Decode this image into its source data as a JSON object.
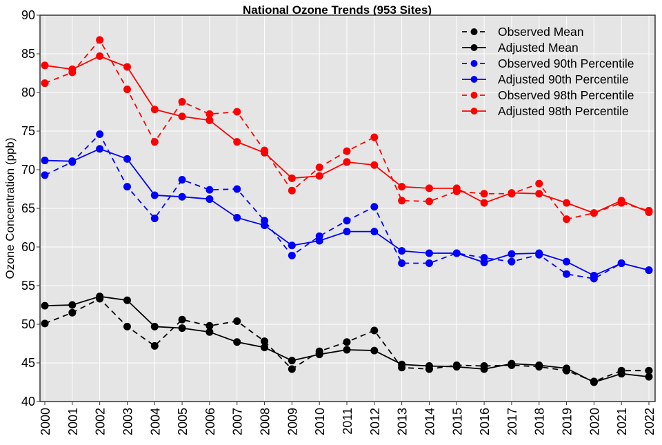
{
  "chart_data": {
    "type": "line",
    "title": "National Ozone Trends (953 Sites)",
    "xlabel": "",
    "ylabel": "Ozone Concentration (ppb)",
    "ylim": [
      40,
      90
    ],
    "yticks": [
      40,
      45,
      50,
      55,
      60,
      65,
      70,
      75,
      80,
      85,
      90
    ],
    "grid": true,
    "legend_position": "top-right",
    "x": [
      "2000",
      "2001",
      "2002",
      "2003",
      "2004",
      "2005",
      "2006",
      "2007",
      "2008",
      "2009",
      "2010",
      "2011",
      "2012",
      "2013",
      "2014",
      "2015",
      "2016",
      "2017",
      "2018",
      "2019",
      "2020",
      "2021",
      "2022"
    ],
    "series": [
      {
        "name": "Observed Mean",
        "color": "#000000",
        "dashed": true,
        "values": [
          50.1,
          51.5,
          53.3,
          49.7,
          47.2,
          50.6,
          49.8,
          50.4,
          47.8,
          44.2,
          46.5,
          47.7,
          49.2,
          44.4,
          44.2,
          44.7,
          44.6,
          44.7,
          44.5,
          44.0,
          42.6,
          44.0,
          44.0
        ]
      },
      {
        "name": "Adjusted Mean",
        "color": "#000000",
        "dashed": false,
        "values": [
          52.4,
          52.5,
          53.6,
          53.1,
          49.7,
          49.5,
          49.0,
          47.7,
          47.0,
          45.3,
          46.1,
          46.7,
          46.6,
          44.8,
          44.6,
          44.5,
          44.2,
          44.9,
          44.7,
          44.3,
          42.5,
          43.6,
          43.2
        ]
      },
      {
        "name": "Observed 90th Percentile",
        "color": "#0000ff",
        "dashed": true,
        "values": [
          69.3,
          71.0,
          74.6,
          67.8,
          63.7,
          68.7,
          67.4,
          67.5,
          63.4,
          58.9,
          61.4,
          63.4,
          65.2,
          57.9,
          57.9,
          59.2,
          58.6,
          58.1,
          59.0,
          56.5,
          55.9,
          57.9,
          57.0
        ]
      },
      {
        "name": "Adjusted 90th Percentile",
        "color": "#0000ff",
        "dashed": false,
        "values": [
          71.2,
          71.1,
          72.7,
          71.4,
          66.7,
          66.5,
          66.2,
          63.8,
          62.8,
          60.2,
          60.8,
          62.0,
          62.0,
          59.5,
          59.2,
          59.2,
          58.0,
          59.1,
          59.2,
          58.1,
          56.3,
          57.9,
          57.0
        ]
      },
      {
        "name": "Observed 98th Percentile",
        "color": "#ff0000",
        "dashed": true,
        "values": [
          81.2,
          82.6,
          86.8,
          80.4,
          73.6,
          78.8,
          77.2,
          77.5,
          72.5,
          67.3,
          70.3,
          72.4,
          74.2,
          66.0,
          65.9,
          67.2,
          66.9,
          66.9,
          68.2,
          63.6,
          64.4,
          65.7,
          64.7
        ]
      },
      {
        "name": "Adjusted 98th Percentile",
        "color": "#ff0000",
        "dashed": false,
        "values": [
          83.5,
          83.0,
          84.7,
          83.3,
          77.8,
          76.9,
          76.4,
          73.6,
          72.2,
          68.9,
          69.2,
          71.0,
          70.6,
          67.8,
          67.6,
          67.6,
          65.7,
          67.0,
          66.9,
          65.7,
          64.4,
          66.0,
          64.5
        ]
      }
    ]
  }
}
